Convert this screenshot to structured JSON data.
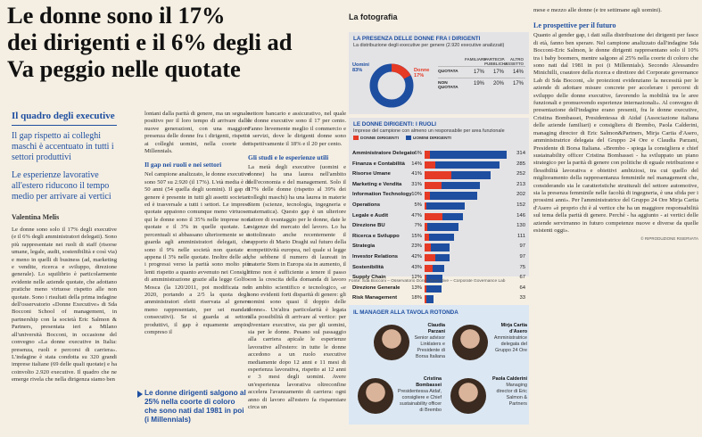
{
  "headline": [
    "Le donne sono il 17%",
    "dei dirigenti e il 6% degli ad",
    "Va peggio nelle quotate"
  ],
  "sidebar": {
    "section_title": "Il quadro degli executive",
    "sub1": "Il gap rispetto ai colleghi maschi è accentuato in tutti i settori produttivi",
    "sub2": "Le esperienze lavorative all'estero riducono il tempo medio per arrivare ai vertici",
    "author": "Valentina Melis",
    "body": "Le donne sono solo il 17% degli executive (e il 6% degli amministratori delegati). Sono più rappresentate nei ruoli di staff (risorse umane, legale, audit, sostenibilità e così via) e meno in quelli di business (ad, marketing e vendite, ricerca e sviluppo, direzione generale). Lo squilibrio è particolarmente evidente nelle aziende quotate, che adottano pratiche meno virtuose rispetto alle non quotate. Sono i risultati della prima indagine dell'osservatorio «Donne Executive» di Sda Bocconi School of management, in partnership con la società Eric Salmon & Partners, presentata ieri a Milano all'università Bocconi, in occasione del convegno «La donne executive in Italia: presenza, ruoli e percorsi di carriera». L'indagine è stata condotta su 320 grandi imprese italiane (69 delle quali quotate) e ha coinvolto 2.920 executive. Il quadro che ne emerge rivela che nella dirigenza siamo ben"
  },
  "col2": {
    "p1": "lontani dalla parità di genere, ma un segnale positivo per il loro tempo di arrivare dalle nuove generazioni, con una maggiore presenza delle donne fra i dirigenti, rispetto ai colleghi uomini, nella coorte dei Millennials.",
    "subhead": "Il gap nei ruoli e nei settori",
    "p2": "Nel campione analizzato, le donne executive sono 507 su 2.920 (il 17%). L'età media è di 50 anni (54 quella degli uomini). Il gap di genere è presente in tutti gli assetti societari ed è trasversale a tutti i settori. Le imprese quotate appaiono comunque meno virtuose: qui le donne sono il 35% nelle imprese non quotate e il 3% in quelle quotate. Le percentuali si abbassano ulteriormente se si guarda agli amministratori delegati, che sono il 9% nelle società non quotate e appena il 3% nelle quotate. Inoltre delle ad, i progressi verso la parità sono molto più lenti rispetto a quanto avvenuto nei Consigli di amministrazione grazie alla legge Golfo-Mosca (la 120/2011, poi modificata nel 2020, portando a 2/5 la quota degli amministratori eletti riservata al genere meno rappresentato, per sei mandati consecutivi). Se si guarda ai settori produttivi, il gap è equamente ampio, compreso il"
  },
  "quote": "Le donne dirigenti salgono al 25% nella coorte di coloro che sono nati dal 1981 in poi (i Millennials)",
  "col3": {
    "p1": "settore bancario e assicurativo, nel quale le donne executive sono il 17 per cento. Fanno lievemente meglio il commercio e i servizi, dove le dirigenti donne sono rispettivamente il 18% e il 20 per cento.",
    "subhead": "Gli studi e le esperienze utili",
    "p2": "La metà degli executive (uomini e donne) ha una laurea nell'ambito dell'economia e del management. Solo il 17% delle donne (rispetto al 39% dei colleghi maschi) ha una laurea in materie Stem (scienze, tecnologia, ingegneria e matematica). Questo gap è un ulteriore fattore di svantaggio per le donne, date le esigenze del mercato del lavoro. Lo ha sottolineato anche recentemente il rapporto di Mario Draghi sul futuro della competitività europea, nel quale si legge che sebbene il numero di laureati in materie Stem in Europa sia in aumento, il ritmo non è sufficiente a tenere il passo con la crescita della domanda di lavoro in ambito scientifico e tecnologico, «e sono evidenti forti disparità di genere: gli uomini sono quasi il doppio delle donne». Un'altra particolarità è legata alla possibilità di arrivare al vertice: per diventare executive, sia per gli uomini, sia per le donne. Pesano sul passaggio alla carriera apicale le esperienze lavorative all'estero: in tutte le donne accedono a un ruolo executive mediamente dopo 12 anni e 11 mesi di esperienza lavorativa, rispetto ai 12 anni e 3 mesi degli uomini. Avere un'esperienza lavorativa oltreconfine accelera l'avanzamento di carriera: ogni anno di lavoro all'estero fa risparmiare circa un"
  },
  "panel": {
    "title": "La fotografia",
    "box1": {
      "title": "LA PRESENZA DELLE DONNE FRA I DIRIGENTI",
      "subtitle": "La distribuzione degli executive per genere (2.920 executive analizzati)",
      "men_label": "Uomini",
      "men_value": "83%",
      "women_label": "Donne",
      "women_value": "17%",
      "headers": [
        "FAMILIARE",
        "PARTECIP. PUBBLICHE",
        "ALTRO ASSETTO"
      ],
      "rows": [
        {
          "label": "QUOTATA",
          "values": [
            "17%",
            "17%",
            "14%"
          ]
        },
        {
          "label": "NON QUOTATA",
          "values": [
            "19%",
            "20%",
            "17%"
          ]
        }
      ]
    },
    "box2": {
      "title": "LE DONNE DIRIGENTI: I RUOLI",
      "subtitle": "Imprese del campione con almeno un responsabile per area funzionale",
      "legend_women": "DONNE DIRIGENTI",
      "legend_men": "UOMINI DIRIGENTI",
      "color_women": "#e53a25",
      "color_men": "#1e4ea0"
    },
    "source": "Fonte: Sda Bocconi – Osservatorio Donne Executive – Corporate Governance Lab",
    "box3": {
      "title": "IL MANAGER ALLA TAVOLA ROTONDA",
      "managers": [
        {
          "name": "Claudia Parzani",
          "role": "Senior advisor Linklaters e Presidente di Borsa Italiana"
        },
        {
          "name": "Mirja Cartia d'Asero",
          "role": "Amministratrice delegata del Gruppo 24 Ore"
        },
        {
          "name": "Cristina Bombassei",
          "role": "Presidentessa Aidaf, consigliere e Chief sustainability officer di Brembo"
        },
        {
          "name": "Paola Calderini",
          "role": "Managing director di Eric Salmon & Partners"
        }
      ]
    }
  },
  "chart_data": {
    "type": "bar",
    "title": "LE DONNE DIRIGENTI: I RUOLI",
    "categories": [
      "Amministratore Delegato",
      "Finanza e Contabilità",
      "Risorse Umane",
      "Marketing e Vendita",
      "Information Technology",
      "Operations",
      "Legale e Audit",
      "Direzione BU",
      "Ricerca e Sviluppo",
      "Strategia",
      "Investor Relations",
      "Sostenibilità",
      "Supply Chain",
      "Direzione Generale",
      "Risk Management"
    ],
    "series": [
      {
        "name": "DONNE DIRIGENTI",
        "values": [
          6,
          14,
          41,
          31,
          10,
          5,
          47,
          7,
          15,
          23,
          42,
          43,
          12,
          13,
          18
        ]
      },
      {
        "name": "UOMINI DIRIGENTI",
        "values": [
          314,
          285,
          252,
          213,
          202,
          152,
          146,
          130,
          111,
          97,
          97,
          75,
          67,
          64,
          33
        ]
      }
    ],
    "value_format_women": "%",
    "xlabel": "",
    "ylabel": ""
  },
  "rightcol": {
    "p1": "mese e mezzo alle donne (e tre settimane agli uomini).",
    "subhead": "Le prospettive per il futuro",
    "p2": "Quanto al gender gap, i dati sulla distribuzione dei dirigenti per fasce di età, fanno ben sperare. Nel campione analizzato dall'indagine Sda Bocconi-Eric Salmon, le donne dirigenti rappresentano solo il 10% tra i baby boomers, mentre salgono al 25% nella coorte di coloro che sono nati dal 1981 in poi (i Millennials). Secondo Alessandro Minichilli, coautore della ricerca e direttore del Corporate governance Lab di Sda Bocconi, «le proiezioni evidenziano la necessità per le aziende di adottare misure concrete per accelerare i percorsi di sviluppo delle donne executive, favorendo la mobilità tra le aree funzionali e promuovendo esperienze internazionali». Al convegno di presentazione dell'indagine erano presenti, fra le donne executive, Cristina Bombassei, Presidentessa di Aidaf (Associazione italiana delle aziende familiari) e consigliera di Brembo, Paola Calderini, managing director di Eric Salmon&Partners, Mirja Cartia d'Asero, amministratrice delegata del Gruppo 24 Ore e Claudia Parzani, Presidente di Borsa Italiana. «Brembo - spiega la consigliera e chief sustainability officer Cristina Bombassei - ha sviluppato un piano strategico per la parità di genere con politiche di eguale retribuzione e flessibilità lavorativa e obiettivi ambiziosi, tra cui quello del miglioramento della rappresentanza femminile nel management che, considerando sia le caratteristiche strutturali del settore automotive, sia la presenza femminile nelle facoltà di ingegneria, è una sfida per i prossimi anni». Per l'amministratrice del Gruppo 24 Ore Mirja Cartia d'Asero «è proprio chi è al vertice che ha un maggiore responsabilità sul tema della parità di genere. Perché - ha aggiunto - ai vertici delle aziende servirranno in futuro competenze nuove e diverse da quelle esistenti oggi».",
    "footer": "© RIPRODUZIONE RISERVATA"
  }
}
